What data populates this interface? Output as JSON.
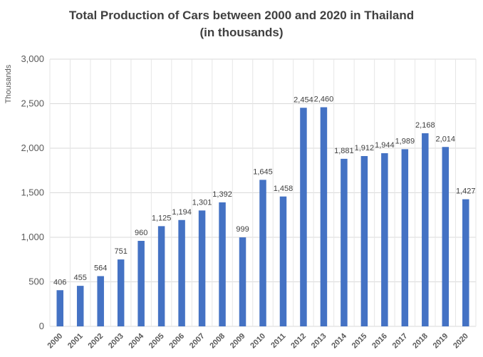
{
  "chart_data": {
    "type": "bar",
    "title_line1": "Total Production  of Cars between 2000 and 2020 in Thailand",
    "title_line2": "(in thousands)",
    "ylabel": "Thousands",
    "xlabel": "",
    "ylim": [
      0,
      3000
    ],
    "yticks": [
      0,
      500,
      1000,
      1500,
      2000,
      2500,
      3000
    ],
    "ytick_labels": [
      "0",
      "500",
      "1,000",
      "1,500",
      "2,000",
      "2,500",
      "3,000"
    ],
    "grid": true,
    "color": "#4472C4",
    "categories": [
      "2000",
      "2001",
      "2002",
      "2003",
      "2004",
      "2005",
      "2006",
      "2007",
      "2008",
      "2009",
      "2010",
      "2011",
      "2012",
      "2013",
      "2014",
      "2015",
      "2016",
      "2017",
      "2018",
      "2019",
      "2020"
    ],
    "values": [
      406,
      455,
      564,
      751,
      960,
      1125,
      1194,
      1301,
      1392,
      999,
      1645,
      1458,
      2454,
      2460,
      1881,
      1912,
      1944,
      1989,
      2168,
      2014,
      1427
    ],
    "value_labels": [
      "406",
      "455",
      "564",
      "751",
      "960",
      "1,125",
      "1,194",
      "1,301",
      "1,392",
      "999",
      "1,645",
      "1,458",
      "2,454",
      "2,460",
      "1,881",
      "1,912",
      "1,944",
      "1,989",
      "2,168",
      "2,014",
      "1,427"
    ]
  }
}
